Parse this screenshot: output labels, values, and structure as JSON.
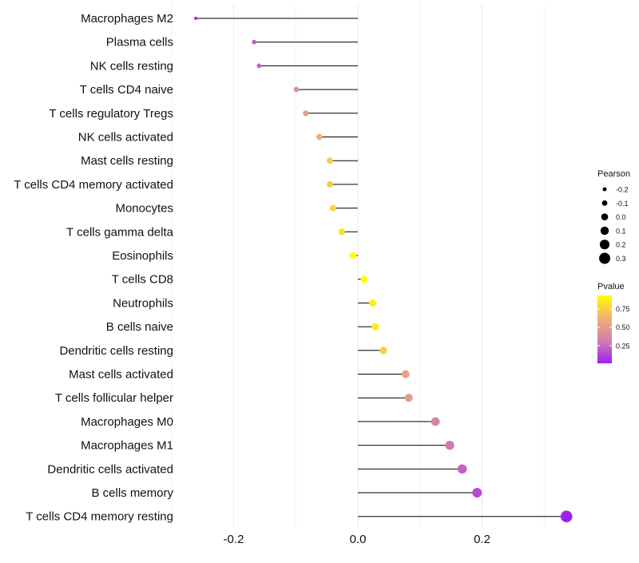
{
  "chart_data": {
    "type": "lollipop",
    "xlabel": "",
    "ylabel": "",
    "xlim": [
      -0.3,
      0.35
    ],
    "xticks": [
      -0.2,
      0.0,
      0.2
    ],
    "xtick_labels": [
      "-0.2",
      "0.0",
      "0.2"
    ],
    "grid": true,
    "categories": [
      "Macrophages M2",
      "Plasma cells",
      "NK cells resting",
      "T cells CD4 naive",
      "T cells regulatory  Tregs",
      "NK cells activated",
      "Mast cells resting",
      "T cells CD4 memory activated",
      "Monocytes",
      "T cells gamma delta",
      "Eosinophils",
      "T cells CD8",
      "Neutrophils",
      "B cells naive",
      "Dendritic cells resting",
      "Mast cells activated",
      "T cells follicular helper",
      "Macrophages M0",
      "Macrophages M1",
      "Dendritic cells activated",
      "B cells memory",
      "T cells CD4 memory resting"
    ],
    "pearson": [
      -0.261,
      -0.167,
      -0.159,
      -0.099,
      -0.084,
      -0.062,
      -0.045,
      -0.045,
      -0.04,
      -0.026,
      -0.008,
      0.01,
      0.024,
      0.028,
      0.041,
      0.077,
      0.082,
      0.125,
      0.148,
      0.168,
      0.192,
      0.336
    ],
    "pvalue": [
      0.02,
      0.2,
      0.22,
      0.45,
      0.5,
      0.6,
      0.72,
      0.72,
      0.76,
      0.82,
      0.97,
      0.96,
      0.87,
      0.85,
      0.75,
      0.55,
      0.5,
      0.35,
      0.3,
      0.22,
      0.15,
      0.01
    ],
    "legend_size": {
      "title": "Pearson",
      "labels": [
        "-0.2",
        "-0.1",
        "0.0",
        "0.1",
        "0.2",
        "0.3"
      ],
      "values": [
        -0.2,
        -0.1,
        0.0,
        0.1,
        0.2,
        0.3
      ]
    },
    "legend_color": {
      "title": "Pvalue",
      "labels": [
        "0.75",
        "0.50",
        "0.25"
      ],
      "values": [
        0.75,
        0.5,
        0.25
      ],
      "range": [
        0.01,
        0.93
      ],
      "colors": [
        "#a020f0",
        "#d080b0",
        "#f0b070",
        "#ffff00"
      ]
    },
    "legend_placement": "right"
  }
}
